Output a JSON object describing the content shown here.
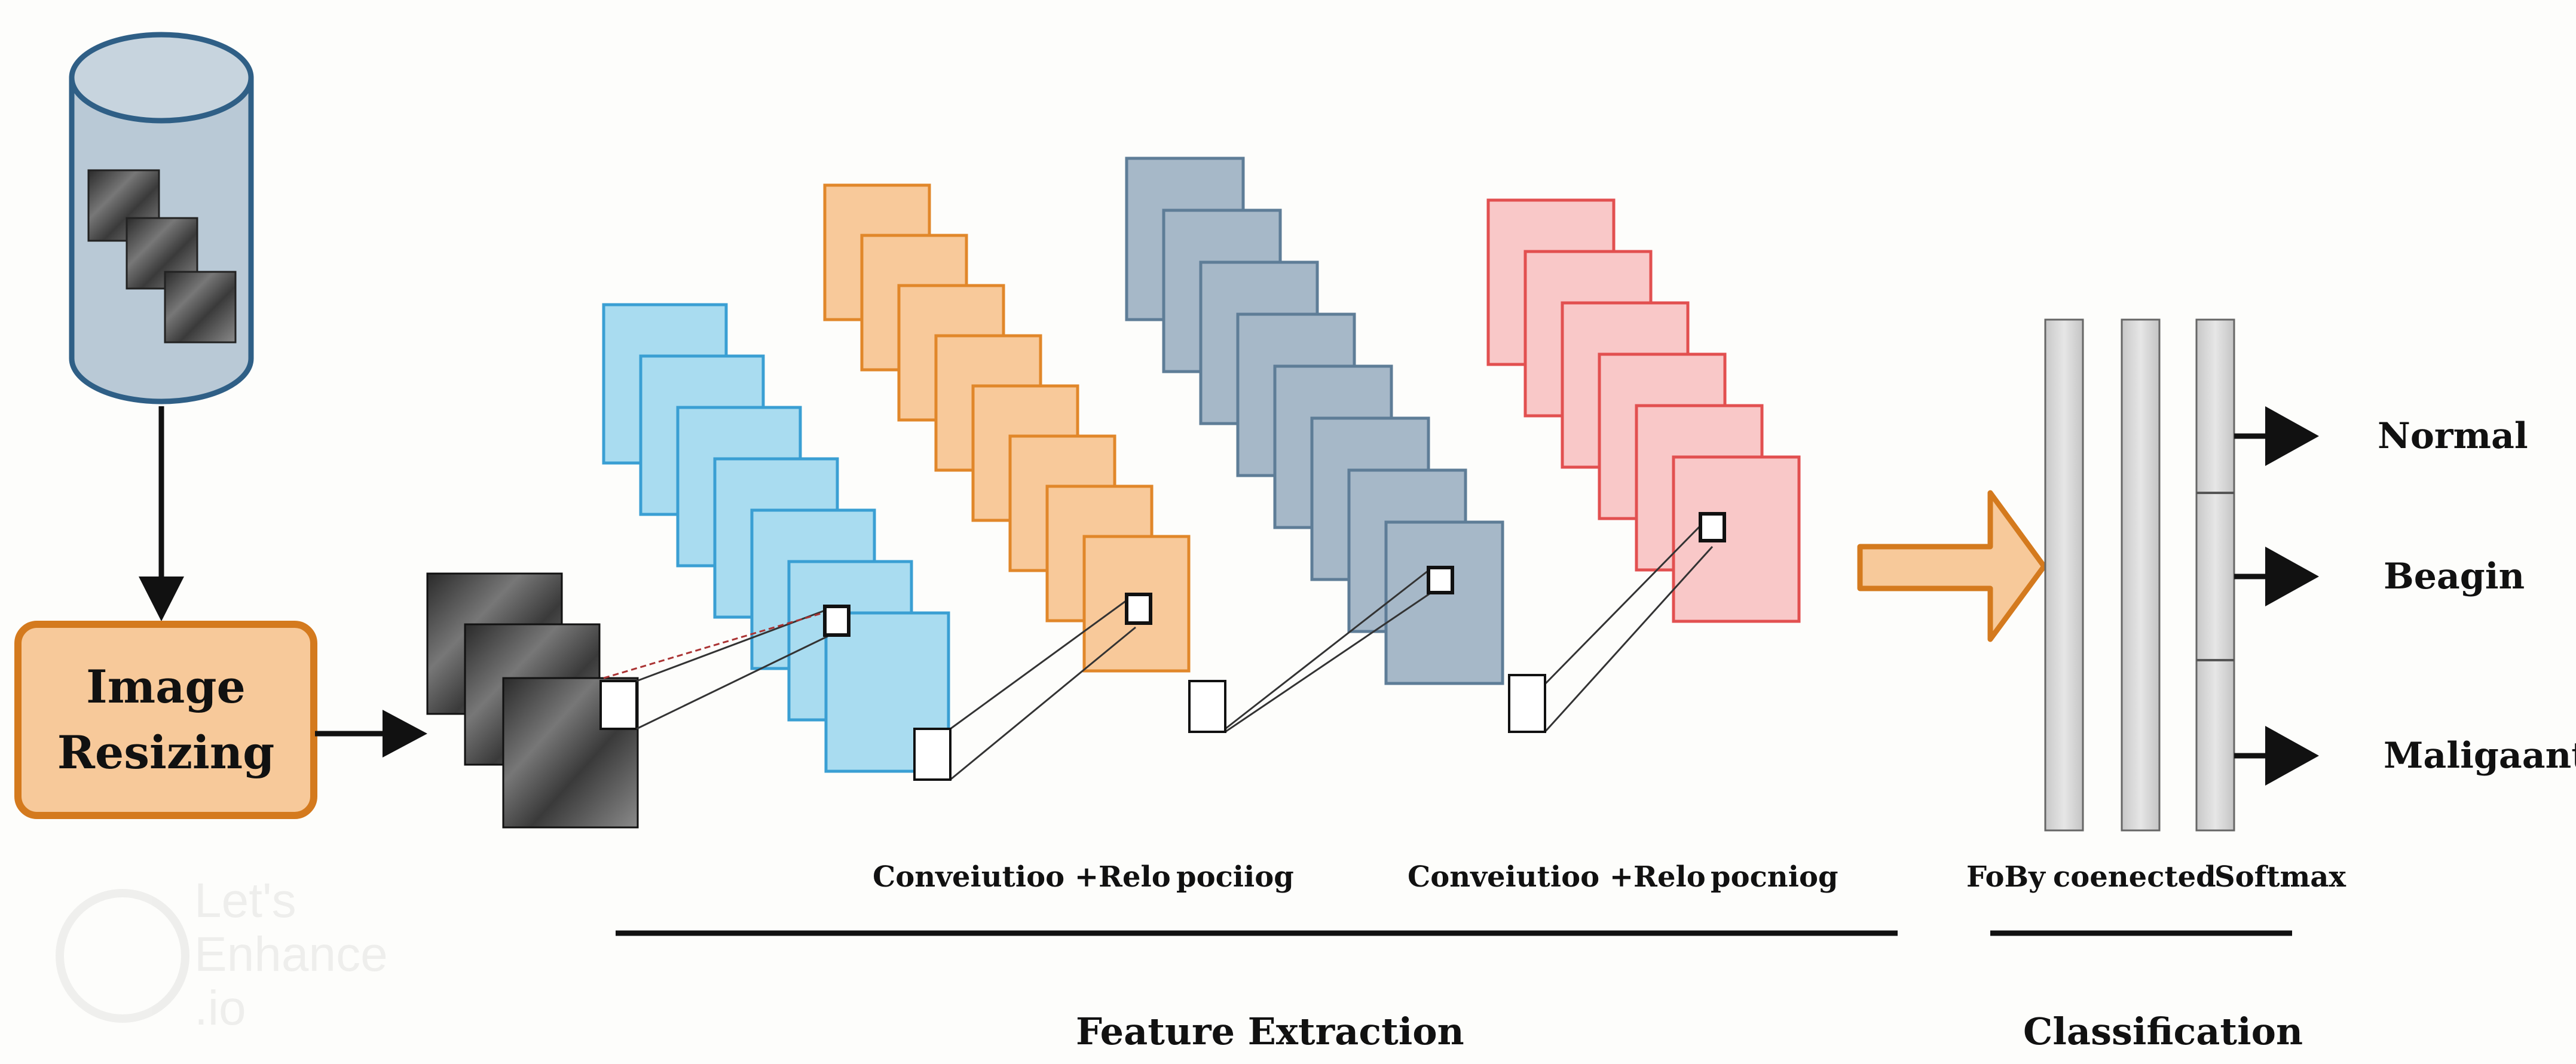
{
  "input": {
    "stage_label_line1": "Image",
    "stage_label_line2": "Resizing"
  },
  "layers": {
    "conv1_caption": "Conveiutioo +Relo",
    "pool1_caption": "pociiog",
    "conv2_caption": "Conveiutioo +Relo",
    "pool2_caption": "pocniog"
  },
  "classifier": {
    "fc_caption_1": "FoBy",
    "fc_caption_2": "coenected",
    "softmax_caption": "Softmax"
  },
  "outputs": [
    "Normal",
    "Beagin",
    "Maligaant"
  ],
  "sections": {
    "feature_extraction": "Feature Extraction",
    "classification": "Classification"
  },
  "watermark": "Let's Enhance .io",
  "colors": {
    "cylinder_fill": "#b9c9d6",
    "cylinder_stroke": "#2f5f86",
    "resize_fill": "#f7c99a",
    "resize_stroke": "#d47a1e",
    "blue_fill": "#a9dcf0",
    "blue_stroke": "#3a9fd3",
    "orange_fill": "#f8c99a",
    "orange_stroke": "#e1872a",
    "slate_fill": "#a6b8c8",
    "slate_stroke": "#5e7d97",
    "pink_fill": "#f9c8c8",
    "pink_stroke": "#e25050",
    "fc_fill": "#d4d4d4",
    "arrow_fill": "#f7c99a",
    "arrow_stroke": "#d47a1e"
  }
}
